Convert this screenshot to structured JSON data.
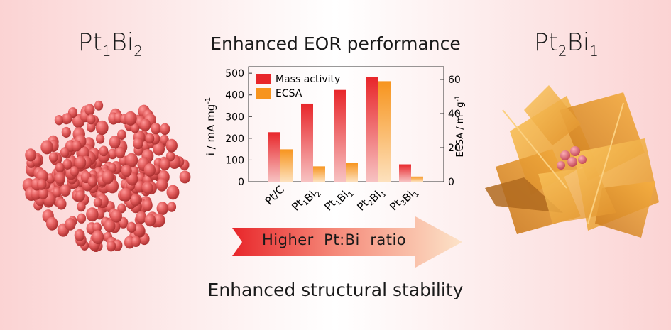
{
  "labels": {
    "left": {
      "base1": "Pt",
      "sub1": "1",
      "base2": "Bi",
      "sub2": "2"
    },
    "right": {
      "base1": "Pt",
      "sub1": "2",
      "base2": "Bi",
      "sub2": "1"
    }
  },
  "headline_top": "Enhanced EOR performance",
  "headline_bottom": "Enhanced structural stability",
  "arrow_text": "Higher  Pt:Bi  ratio",
  "colors": {
    "mass_activity": "#e8262a",
    "ecsa": "#f7941d",
    "pt1bi2_particle": "#e05a5a",
    "pt2bi1_particle": "#f4a93a"
  },
  "chart_data": {
    "type": "bar",
    "categories": [
      {
        "base1": "Pt/C",
        "sub1": "",
        "base2": "",
        "sub2": ""
      },
      {
        "base1": "Pt",
        "sub1": "1",
        "base2": "Bi",
        "sub2": "2"
      },
      {
        "base1": "Pt",
        "sub1": "1",
        "base2": "Bi",
        "sub2": "1"
      },
      {
        "base1": "Pt",
        "sub1": "2",
        "base2": "Bi",
        "sub2": "1"
      },
      {
        "base1": "Pt",
        "sub1": "3",
        "base2": "Bi",
        "sub2": "1"
      }
    ],
    "series": [
      {
        "name": "Mass activity",
        "axis": "left",
        "values": [
          228,
          360,
          423,
          481,
          80
        ]
      },
      {
        "name": "ECSA",
        "axis": "right",
        "values": [
          19,
          9,
          11,
          59,
          3
        ]
      }
    ],
    "ylabel_left": "i / mA mg",
    "ylabel_left_sup": "-1",
    "ylabel_right": "ECSA / m",
    "ylabel_right_sup1": "2",
    "ylabel_right_mid": " g",
    "ylabel_right_sup2": "-1",
    "ylim_left": [
      0,
      530
    ],
    "ylim_right": [
      0,
      67.5
    ],
    "yticks_left": [
      0,
      100,
      200,
      300,
      400,
      500
    ],
    "yticks_right": [
      0,
      20,
      40,
      60
    ],
    "legend_position": "top-left"
  }
}
